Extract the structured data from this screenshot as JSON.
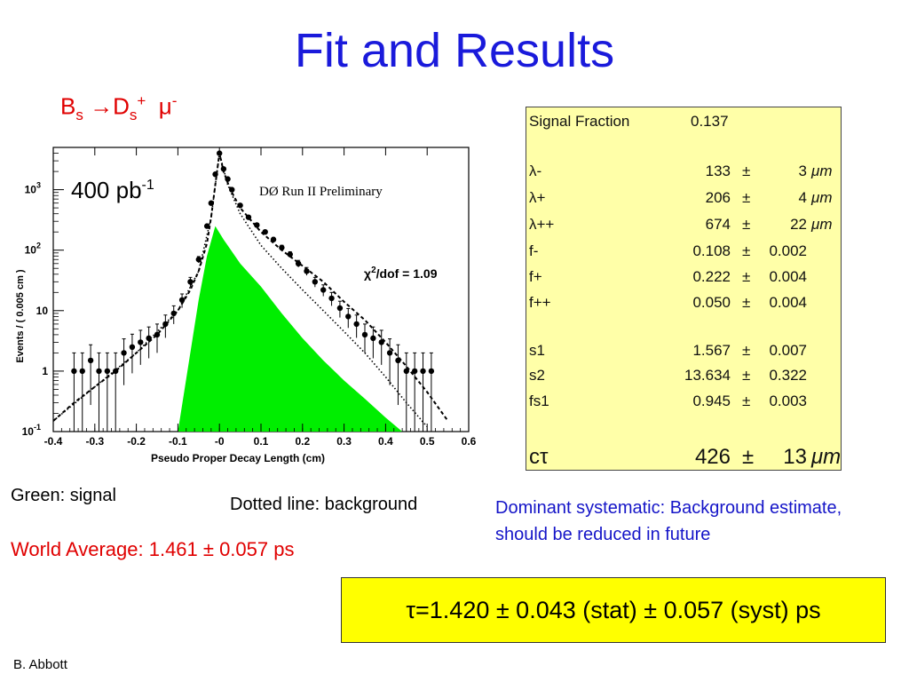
{
  "slide": {
    "title": "Fit and Results",
    "decay": {
      "b": "B",
      "bsub": "s",
      "arrow": "→D",
      "dsub": "s",
      "dsup": "+",
      "mu": "μ",
      "musup": "-"
    },
    "notes": {
      "green": "Green: signal",
      "dotted": "Dotted line: background",
      "systematic": "Dominant systematic: Background estimate, should be reduced in future"
    },
    "world_average": "World Average: 1.461  ± 0.057 ps",
    "result": "τ=1.420  ± 0.043 (stat)  ± 0.057 (syst) ps",
    "author": "B. Abbott",
    "colors": {
      "title": "#1a1adb",
      "red": "#e00000",
      "signal": "#00ee00",
      "result_bg": "#ffff00",
      "table_bg": "#ffffa8"
    }
  },
  "fit_table": {
    "rows": [
      {
        "name": "Signal Fraction",
        "value": "0.137",
        "pm": "",
        "err": "",
        "unit": ""
      },
      {
        "name": "λ-",
        "value": "133",
        "pm": "±",
        "err": "3",
        "unit": "μm"
      },
      {
        "name": "λ+",
        "value": "206",
        "pm": "±",
        "err": "4",
        "unit": "μm"
      },
      {
        "name": "λ++",
        "value": "674",
        "pm": "±",
        "err": "22",
        "unit": "μm"
      },
      {
        "name": "f-",
        "value": "0.108",
        "pm": "±",
        "err": "0.002",
        "unit": ""
      },
      {
        "name": "f+",
        "value": "0.222",
        "pm": "±",
        "err": "0.004",
        "unit": ""
      },
      {
        "name": "f++",
        "value": "0.050",
        "pm": "±",
        "err": "0.004",
        "unit": ""
      },
      {
        "name": "s1",
        "value": "1.567",
        "pm": "±",
        "err": "0.007",
        "unit": ""
      },
      {
        "name": "s2",
        "value": "13.634",
        "pm": "±",
        "err": "0.322",
        "unit": ""
      },
      {
        "name": "fs1",
        "value": "0.945",
        "pm": "±",
        "err": "0.003",
        "unit": ""
      },
      {
        "name": "cτ",
        "value": "426",
        "pm": "±",
        "err": "13",
        "unit": "μm"
      }
    ]
  },
  "chart_data": {
    "type": "scatter",
    "xlabel": "Pseudo Proper Decay Length  (cm)",
    "ylabel": "Events / ( 0.005 cm )",
    "xlim": [
      -0.4,
      0.6
    ],
    "ylim": [
      0.1,
      5000
    ],
    "yscale": "log",
    "xticks": [
      "-0.4",
      "-0.3",
      "-0.2",
      "-0.1",
      "-0",
      "0.1",
      "0.2",
      "0.3",
      "0.4",
      "0.5",
      "0.6"
    ],
    "yticks": [
      {
        "base": "10",
        "exp": "-1",
        "value": 0.1
      },
      {
        "base": "1",
        "exp": "",
        "value": 1
      },
      {
        "base": "10",
        "exp": "",
        "value": 10
      },
      {
        "base": "10",
        "exp": "2",
        "value": 100
      },
      {
        "base": "10",
        "exp": "3",
        "value": 1000
      }
    ],
    "annotations": {
      "lumi": "400 pb",
      "lumi_sup": "-1",
      "experiment": "DØ Run II Preliminary",
      "chi2": "χ",
      "chi2_sup": "2",
      "chi2_rest": "/dof = 1.09"
    },
    "series": [
      {
        "role": "data",
        "x": [
          -0.35,
          -0.33,
          -0.31,
          -0.29,
          -0.27,
          -0.25,
          -0.23,
          -0.21,
          -0.19,
          -0.17,
          -0.15,
          -0.13,
          -0.11,
          -0.09,
          -0.07,
          -0.05,
          -0.03,
          -0.02,
          -0.01,
          0.0,
          0.01,
          0.02,
          0.03,
          0.05,
          0.07,
          0.09,
          0.11,
          0.13,
          0.15,
          0.17,
          0.19,
          0.21,
          0.23,
          0.25,
          0.27,
          0.29,
          0.31,
          0.33,
          0.35,
          0.37,
          0.39,
          0.41,
          0.43,
          0.45,
          0.47,
          0.49,
          0.51
        ],
        "y": [
          1,
          1,
          1.5,
          1,
          1,
          1,
          2,
          2.5,
          3,
          3.5,
          4,
          6,
          9,
          15,
          30,
          70,
          250,
          600,
          1800,
          4000,
          2200,
          1500,
          1000,
          550,
          350,
          260,
          200,
          150,
          110,
          85,
          60,
          45,
          30,
          22,
          16,
          11,
          8,
          6,
          4,
          3.5,
          3,
          2,
          1.5,
          1,
          1,
          1,
          1
        ]
      },
      {
        "role": "total fit (dashed)",
        "x": [
          -0.4,
          -0.35,
          -0.3,
          -0.25,
          -0.2,
          -0.15,
          -0.1,
          -0.07,
          -0.05,
          -0.03,
          -0.02,
          -0.01,
          0.0,
          0.01,
          0.02,
          0.03,
          0.05,
          0.1,
          0.15,
          0.2,
          0.25,
          0.3,
          0.35,
          0.4,
          0.45,
          0.5,
          0.55
        ],
        "y": [
          0.15,
          0.3,
          0.55,
          1.0,
          2.0,
          4.0,
          10,
          22,
          45,
          130,
          350,
          1200,
          4000,
          2000,
          1300,
          900,
          500,
          200,
          100,
          55,
          30,
          14,
          7,
          3,
          1.2,
          0.45,
          0.15
        ]
      },
      {
        "role": "background (dotted)",
        "x": [
          -0.4,
          -0.3,
          -0.2,
          -0.1,
          -0.05,
          -0.02,
          0.0,
          0.02,
          0.05,
          0.1,
          0.15,
          0.2,
          0.25,
          0.3,
          0.35,
          0.4,
          0.45,
          0.5
        ],
        "y": [
          0.15,
          0.55,
          2.0,
          10,
          45,
          350,
          4000,
          1200,
          400,
          120,
          50,
          22,
          10,
          4.5,
          2,
          0.8,
          0.3,
          0.12
        ]
      },
      {
        "role": "signal (green)",
        "x": [
          -0.1,
          -0.05,
          -0.03,
          -0.01,
          0.01,
          0.05,
          0.1,
          0.15,
          0.2,
          0.25,
          0.3,
          0.35,
          0.4,
          0.44
        ],
        "y": [
          0.1,
          15,
          80,
          250,
          150,
          60,
          25,
          9,
          3.5,
          1.5,
          0.7,
          0.35,
          0.17,
          0.1
        ]
      }
    ]
  }
}
